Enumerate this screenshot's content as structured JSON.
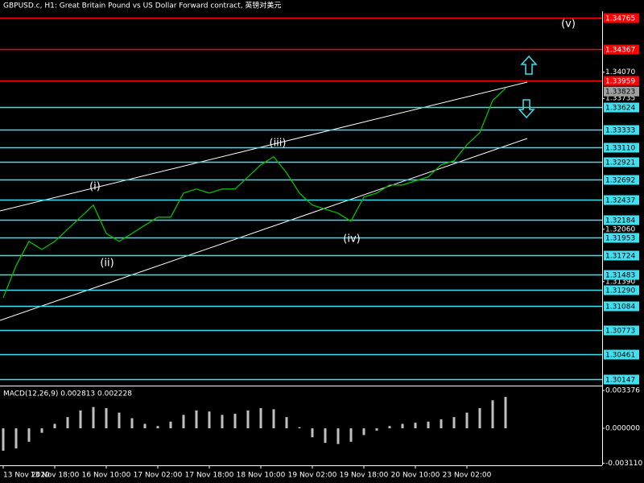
{
  "chart_data": [
    {
      "type": "line",
      "title": "GBPUSD.c, H1:  Great Britain Pound vs US Dollar Forward contract, 英镑对美元",
      "x": [
        0,
        4,
        8,
        12,
        16,
        20,
        24,
        28,
        32,
        36,
        40,
        44,
        48,
        52,
        56,
        60,
        64,
        68,
        72,
        76,
        80,
        84,
        88,
        92,
        96,
        100,
        104,
        108,
        112,
        116,
        120,
        124,
        128,
        132,
        136,
        140,
        144,
        148,
        152,
        156
      ],
      "series": [
        {
          "color": "#00c000",
          "values": [
            1.31184,
            1.31596,
            1.31905,
            1.31802,
            1.31905,
            1.3206,
            1.32215,
            1.32369,
            1.32008,
            1.31905,
            1.32008,
            1.32112,
            1.32215,
            1.32215,
            1.32524,
            1.32575,
            1.32524,
            1.32575,
            1.32575,
            1.3273,
            1.32885,
            1.32988,
            1.32782,
            1.32524,
            1.32369,
            1.32318,
            1.32266,
            1.32163,
            1.32472,
            1.32524,
            1.32627,
            1.32627,
            1.32678,
            1.3273,
            1.32885,
            1.32936,
            1.33142,
            1.33297,
            1.33709,
            1.33864
          ]
        }
      ],
      "xlim": [
        -1,
        186
      ],
      "ylim": [
        1.3007,
        1.3485
      ],
      "yticks": [
        {
          "value": 1.3407,
          "label": "1.34070"
        },
        1.33735,
        {
          "value": 1.3206,
          "label": "1.32060"
        },
        {
          "value": 1.3139,
          "label": "1.31390"
        }
      ],
      "levels": [
        {
          "value": 1.34765,
          "color": "#ff0000"
        },
        {
          "value": 1.34367,
          "color": "#ff0000"
        },
        {
          "value": 1.33959,
          "color": "#ff0000"
        },
        {
          "value": 1.33624,
          "color": "#40e0f0"
        },
        {
          "value": 1.33333,
          "color": "#40e0f0"
        },
        {
          "value": 1.3311,
          "label": "1.33110",
          "color": "#40e0f0"
        },
        {
          "value": 1.32921,
          "color": "#40e0f0"
        },
        {
          "value": 1.32692,
          "color": "#40e0f0"
        },
        {
          "value": 1.32437,
          "color": "#40e0f0"
        },
        {
          "value": 1.32184,
          "color": "#40e0f0"
        },
        {
          "value": 1.31953,
          "color": "#40e0f0"
        },
        {
          "value": 1.31724,
          "color": "#40e0f0"
        },
        {
          "value": 1.31483,
          "color": "#40e0f0"
        },
        {
          "value": 1.3129,
          "label": "1.31290",
          "color": "#40e0f0"
        },
        {
          "value": 1.31084,
          "color": "#40e0f0"
        },
        {
          "value": 1.30773,
          "color": "#40e0f0"
        },
        {
          "value": 1.30461,
          "color": "#40e0f0"
        },
        {
          "value": 1.30147,
          "color": "#40e0f0"
        }
      ],
      "current_price": {
        "value": 1.33823,
        "color": "#a0a0a0"
      },
      "annotations": [
        "(i)",
        "(ii)",
        "(iii)",
        "(iv)",
        "(v)"
      ]
    },
    {
      "type": "bar",
      "title": "MACD(12,26,9) 0.002813 0.002228",
      "x": [
        0,
        4,
        8,
        12,
        16,
        20,
        24,
        28,
        32,
        36,
        40,
        44,
        48,
        52,
        56,
        60,
        64,
        68,
        72,
        76,
        80,
        84,
        88,
        92,
        96,
        100,
        104,
        108,
        112,
        116,
        120,
        124,
        128,
        132,
        136,
        140,
        144,
        148,
        152,
        156
      ],
      "values": [
        -0.002,
        -0.0018,
        -0.0012,
        -0.0004,
        0.0004,
        0.001,
        0.0016,
        0.0019,
        0.0018,
        0.0014,
        0.0009,
        0.0004,
        0.0002,
        0.0006,
        0.0012,
        0.0016,
        0.0015,
        0.0012,
        0.0013,
        0.0016,
        0.0018,
        0.0017,
        0.001,
        0.0001,
        -0.0008,
        -0.0013,
        -0.0014,
        -0.0012,
        -0.0006,
        -0.0002,
        0.0002,
        0.0004,
        0.0005,
        0.0006,
        0.0008,
        0.001,
        0.0014,
        0.0018,
        0.0025,
        0.0028
      ],
      "color": "#c0c0c0",
      "xlim": [
        -1,
        186
      ],
      "ylim": [
        -0.0033,
        0.00374
      ],
      "yticks": [
        0.003376,
        {
          "value": 0,
          "label": "0.000000"
        },
        {
          "value": -0.00311,
          "label": "-0.003110"
        }
      ],
      "xticks": [
        {
          "value": 0,
          "label": "13 Nov 2020"
        },
        {
          "value": 16,
          "label": "13 Nov 18:00"
        },
        {
          "value": 32,
          "label": "16 Nov 10:00"
        },
        {
          "value": 48,
          "label": "17 Nov 02:00"
        },
        {
          "value": 64,
          "label": "17 Nov 18:00"
        },
        {
          "value": 80,
          "label": "18 Nov 10:00"
        },
        {
          "value": 96,
          "label": "19 Nov 02:00"
        },
        {
          "value": 112,
          "label": "19 Nov 18:00"
        },
        {
          "value": 128,
          "label": "20 Nov 10:00"
        },
        {
          "value": 144,
          "label": "23 Nov 02:00"
        }
      ]
    }
  ]
}
